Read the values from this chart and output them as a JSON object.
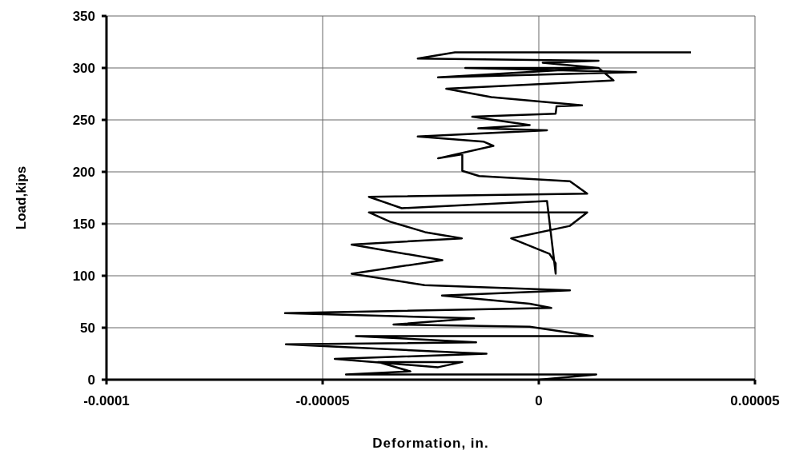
{
  "chart_data": {
    "type": "line",
    "xlabel": "Deformation, in.",
    "ylabel": "Load,kips",
    "xlim": [
      -0.0001,
      5e-05
    ],
    "xticks": [
      {
        "value": -0.0001,
        "label": "-0.0001"
      },
      {
        "value": -5e-05,
        "label": "-0.00005"
      },
      {
        "value": 0,
        "label": "0"
      },
      {
        "value": 5e-05,
        "label": "0.00005"
      }
    ],
    "ylim": [
      0,
      350
    ],
    "yticks": [
      0,
      50,
      100,
      150,
      200,
      250,
      300,
      350
    ],
    "grid": true,
    "series": [
      {
        "color": "#000000",
        "x": [
          2e-07,
          1.33e-05,
          -4.46e-05,
          -2.97e-05,
          -3.72e-05,
          -1.77e-05,
          -2.33e-05,
          -4.72e-05,
          -1.21e-05,
          -1.77e-05,
          -5.85e-05,
          -1.45e-05,
          -4.23e-05,
          1.25e-05,
          -2.1e-06,
          -3.36e-05,
          -1.5e-05,
          -5.87e-05,
          2.9e-06,
          -2.1e-06,
          -2.24e-05,
          7.2e-06,
          -2.64e-05,
          -4.33e-05,
          -2.23e-05,
          -4.33e-05,
          -1.78e-05,
          -2.63e-05,
          -3.44e-05,
          -3.93e-05,
          1.12e-05,
          7.2e-06,
          -6.4e-06,
          2.5e-06,
          3.9e-06,
          3.9e-06,
          1.9e-06,
          -3.17e-05,
          -3.93e-05,
          1.12e-05,
          7.2e-06,
          -1.38e-05,
          -1.77e-05,
          -1.77e-05,
          -2.33e-05,
          -1.05e-05,
          -1.27e-05,
          -2.8e-05,
          1.9e-06,
          -1.4e-05,
          -2.1e-06,
          -1.54e-05,
          3.9e-06,
          4.1e-06,
          1e-05,
          -1.1e-05,
          -2.14e-05,
          1.73e-05,
          1.38e-05,
          -2.33e-05,
          2.25e-05,
          -1.7e-05,
          1.38e-05,
          9e-07,
          1.38e-05,
          -2.8e-05,
          -1.94e-05,
          3.52e-05
        ],
        "values": [
          0,
          5,
          5,
          8,
          17,
          17,
          12,
          20,
          25,
          26,
          34,
          36,
          42,
          42,
          51,
          53,
          59,
          64,
          69,
          73,
          81,
          86,
          91,
          102,
          115,
          130,
          136,
          142,
          152,
          161,
          161,
          148,
          136,
          121,
          112,
          102,
          172,
          165,
          176,
          179,
          191,
          196,
          201,
          217,
          213,
          225,
          229,
          234,
          240,
          242,
          245,
          253,
          256,
          263,
          264,
          272,
          280,
          288,
          300,
          291,
          296,
          300,
          300,
          305,
          307,
          309,
          315,
          315
        ]
      }
    ]
  }
}
